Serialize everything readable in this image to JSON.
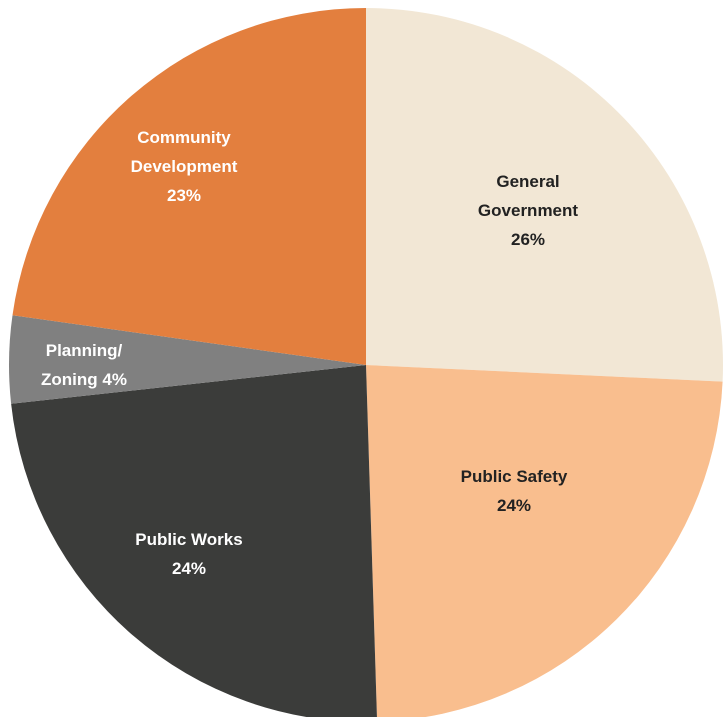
{
  "chart_data": {
    "type": "pie",
    "title": "",
    "start_angle_deg": 0,
    "direction": "clockwise",
    "slices": [
      {
        "label_lines": [
          "General",
          "Government",
          "26%"
        ],
        "value": 26,
        "color": "#F2E7D5",
        "text_color": "#222222"
      },
      {
        "label_lines": [
          "Public Safety",
          "24%"
        ],
        "value": 24,
        "color": "#F9BE8E",
        "text_color": "#222222"
      },
      {
        "label_lines": [
          "Public Works",
          "24%"
        ],
        "value": 24,
        "color": "#3B3C3A",
        "text_color": "#ffffff"
      },
      {
        "label_lines": [
          "Planning/",
          "Zoning 4%"
        ],
        "value": 4,
        "color": "#808080",
        "text_color": "#ffffff"
      },
      {
        "label_lines": [
          "Community",
          "Development",
          "23%"
        ],
        "value": 23,
        "color": "#E37F3E",
        "text_color": "#ffffff"
      }
    ]
  }
}
